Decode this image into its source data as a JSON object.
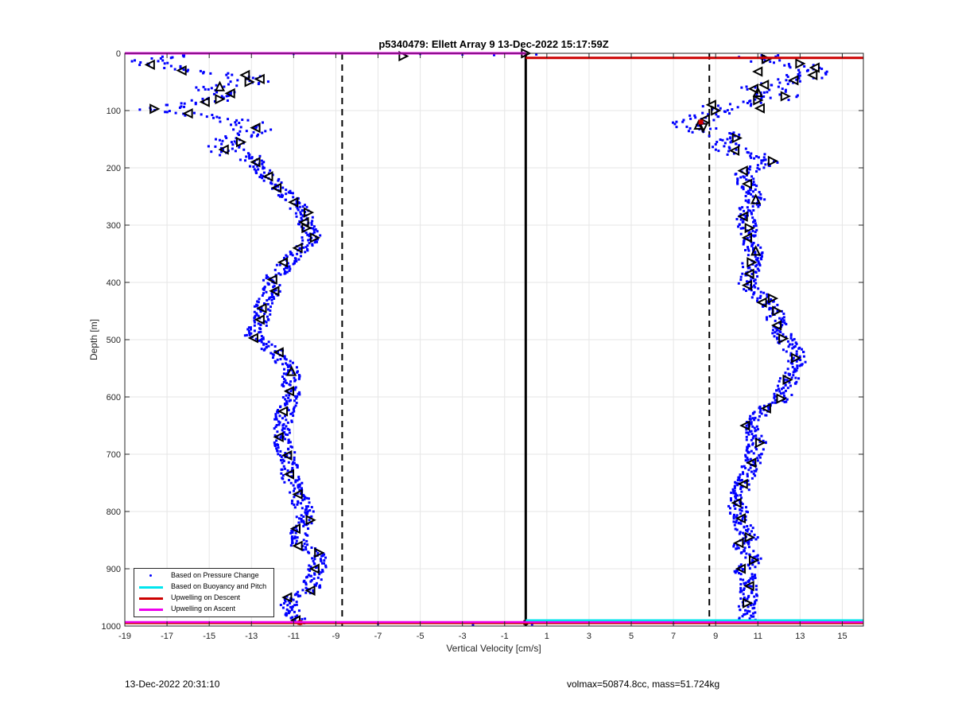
{
  "chart_data": {
    "type": "scatter",
    "title": "p5340479: Ellett Array 9 13-Dec-2022 15:17:59Z",
    "xlabel": "Vertical Velocity [cm/s]",
    "ylabel": "Depth [m]",
    "xlim": [
      -19,
      16
    ],
    "ylim": [
      0,
      1000
    ],
    "y_reversed": true,
    "grid": true,
    "x_ticks": [
      -19,
      -17,
      -15,
      -13,
      -11,
      -9,
      -7,
      -5,
      -3,
      -1,
      1,
      3,
      5,
      7,
      9,
      11,
      13,
      15
    ],
    "y_ticks": [
      0,
      100,
      200,
      300,
      400,
      500,
      600,
      700,
      800,
      900,
      1000
    ],
    "legend_position": "bottom-left",
    "legend": [
      {
        "name": "Based on Pressure Change",
        "color": "#0000ff",
        "kind": "dot"
      },
      {
        "name": "Based on Buoyancy and Pitch",
        "color": "#00e5ee",
        "kind": "line"
      },
      {
        "name": "Upwelling on Descent",
        "color": "#cc0000",
        "kind": "line"
      },
      {
        "name": "Upwelling on Ascent",
        "color": "#ee00ee",
        "kind": "line"
      }
    ],
    "dashed_lines_x": [
      -8.7,
      8.7
    ],
    "solid_line_x": 0,
    "descent_profile": [
      {
        "depth": 5,
        "v": -16.5
      },
      {
        "depth": 10,
        "v": -18.0
      },
      {
        "depth": 20,
        "v": -17.7
      },
      {
        "depth": 30,
        "v": -16.3
      },
      {
        "depth": 40,
        "v": -13.2
      },
      {
        "depth": 50,
        "v": -13.0
      },
      {
        "depth": 60,
        "v": -14.8
      },
      {
        "depth": 70,
        "v": -14.2
      },
      {
        "depth": 80,
        "v": -14.8
      },
      {
        "depth": 90,
        "v": -16.0
      },
      {
        "depth": 97,
        "v": -17.6
      },
      {
        "depth": 105,
        "v": -16.0
      },
      {
        "depth": 120,
        "v": -13.5
      },
      {
        "depth": 135,
        "v": -12.8
      },
      {
        "depth": 150,
        "v": -13.8
      },
      {
        "depth": 168,
        "v": -14.3
      },
      {
        "depth": 190,
        "v": -12.8
      },
      {
        "depth": 215,
        "v": -12.2
      },
      {
        "depth": 240,
        "v": -11.6
      },
      {
        "depth": 260,
        "v": -11.0
      },
      {
        "depth": 280,
        "v": -10.5
      },
      {
        "depth": 300,
        "v": -10.4
      },
      {
        "depth": 320,
        "v": -10.1
      },
      {
        "depth": 345,
        "v": -10.8
      },
      {
        "depth": 370,
        "v": -11.4
      },
      {
        "depth": 395,
        "v": -12.0
      },
      {
        "depth": 420,
        "v": -12.0
      },
      {
        "depth": 445,
        "v": -12.5
      },
      {
        "depth": 470,
        "v": -12.6
      },
      {
        "depth": 497,
        "v": -12.9
      },
      {
        "depth": 525,
        "v": -11.7
      },
      {
        "depth": 555,
        "v": -11.1
      },
      {
        "depth": 590,
        "v": -11.1
      },
      {
        "depth": 625,
        "v": -11.4
      },
      {
        "depth": 670,
        "v": -11.6
      },
      {
        "depth": 700,
        "v": -11.3
      },
      {
        "depth": 740,
        "v": -11.2
      },
      {
        "depth": 770,
        "v": -10.8
      },
      {
        "depth": 810,
        "v": -10.4
      },
      {
        "depth": 835,
        "v": -10.8
      },
      {
        "depth": 860,
        "v": -10.7
      },
      {
        "depth": 875,
        "v": -9.8
      },
      {
        "depth": 900,
        "v": -9.9
      },
      {
        "depth": 935,
        "v": -10.2
      },
      {
        "depth": 955,
        "v": -11.3
      },
      {
        "depth": 990,
        "v": -10.8
      }
    ],
    "ascent_profile": [
      {
        "depth": 5,
        "v": 11.0
      },
      {
        "depth": 15,
        "v": 11.3
      },
      {
        "depth": 20,
        "v": 13.0
      },
      {
        "depth": 30,
        "v": 13.5
      },
      {
        "depth": 40,
        "v": 13.3
      },
      {
        "depth": 50,
        "v": 12.5
      },
      {
        "depth": 60,
        "v": 11.0
      },
      {
        "depth": 75,
        "v": 12.2
      },
      {
        "depth": 85,
        "v": 11.2
      },
      {
        "depth": 95,
        "v": 9.0
      },
      {
        "depth": 105,
        "v": 9.0
      },
      {
        "depth": 115,
        "v": 8.3
      },
      {
        "depth": 125,
        "v": 7.5
      },
      {
        "depth": 135,
        "v": 8.5
      },
      {
        "depth": 150,
        "v": 10.0
      },
      {
        "depth": 170,
        "v": 9.8
      },
      {
        "depth": 190,
        "v": 11.7
      },
      {
        "depth": 210,
        "v": 10.3
      },
      {
        "depth": 230,
        "v": 10.5
      },
      {
        "depth": 255,
        "v": 10.9
      },
      {
        "depth": 280,
        "v": 10.3
      },
      {
        "depth": 300,
        "v": 10.5
      },
      {
        "depth": 320,
        "v": 10.6
      },
      {
        "depth": 345,
        "v": 10.8
      },
      {
        "depth": 365,
        "v": 10.7
      },
      {
        "depth": 385,
        "v": 10.6
      },
      {
        "depth": 405,
        "v": 10.5
      },
      {
        "depth": 430,
        "v": 11.3
      },
      {
        "depth": 450,
        "v": 11.8
      },
      {
        "depth": 475,
        "v": 11.9
      },
      {
        "depth": 500,
        "v": 12.3
      },
      {
        "depth": 530,
        "v": 12.9
      },
      {
        "depth": 560,
        "v": 12.6
      },
      {
        "depth": 585,
        "v": 12.3
      },
      {
        "depth": 605,
        "v": 12.1
      },
      {
        "depth": 620,
        "v": 11.3
      },
      {
        "depth": 650,
        "v": 10.5
      },
      {
        "depth": 680,
        "v": 11.0
      },
      {
        "depth": 715,
        "v": 10.7
      },
      {
        "depth": 750,
        "v": 10.3
      },
      {
        "depth": 780,
        "v": 10.0
      },
      {
        "depth": 810,
        "v": 10.1
      },
      {
        "depth": 845,
        "v": 10.6
      },
      {
        "depth": 860,
        "v": 10.2
      },
      {
        "depth": 885,
        "v": 10.8
      },
      {
        "depth": 900,
        "v": 10.3
      },
      {
        "depth": 930,
        "v": 10.6
      },
      {
        "depth": 960,
        "v": 10.5
      },
      {
        "depth": 985,
        "v": 10.5
      }
    ],
    "descent_triangles": [
      {
        "depth": 20,
        "v": -17.8,
        "dir": "left"
      },
      {
        "depth": 30,
        "v": -16.3,
        "dir": "left"
      },
      {
        "depth": 38,
        "v": -13.3,
        "dir": "left"
      },
      {
        "depth": 45,
        "v": -12.6,
        "dir": "left"
      },
      {
        "depth": 50,
        "v": -13.1,
        "dir": "right"
      },
      {
        "depth": 58,
        "v": -14.5,
        "dir": "up"
      },
      {
        "depth": 70,
        "v": -14.0,
        "dir": "left"
      },
      {
        "depth": 80,
        "v": -14.5,
        "dir": "right"
      },
      {
        "depth": 85,
        "v": -15.2,
        "dir": "left"
      },
      {
        "depth": 97,
        "v": -17.6,
        "dir": "right"
      },
      {
        "depth": 105,
        "v": -16.0,
        "dir": "left"
      },
      {
        "depth": 130,
        "v": -12.8,
        "dir": "left"
      },
      {
        "depth": 155,
        "v": -13.5,
        "dir": "right"
      },
      {
        "depth": 168,
        "v": -14.3,
        "dir": "left"
      },
      {
        "depth": 190,
        "v": -12.8,
        "dir": "left"
      },
      {
        "depth": 215,
        "v": -12.2,
        "dir": "left"
      },
      {
        "depth": 235,
        "v": -11.8,
        "dir": "left"
      },
      {
        "depth": 260,
        "v": -11.0,
        "dir": "left"
      },
      {
        "depth": 278,
        "v": -10.3,
        "dir": "right"
      },
      {
        "depth": 295,
        "v": -10.5,
        "dir": "left"
      },
      {
        "depth": 305,
        "v": -10.4,
        "dir": "right"
      },
      {
        "depth": 322,
        "v": -10.0,
        "dir": "right"
      },
      {
        "depth": 340,
        "v": -10.8,
        "dir": "left"
      },
      {
        "depth": 365,
        "v": -11.5,
        "dir": "left"
      },
      {
        "depth": 395,
        "v": -12.0,
        "dir": "left"
      },
      {
        "depth": 415,
        "v": -11.9,
        "dir": "left"
      },
      {
        "depth": 445,
        "v": -12.5,
        "dir": "left"
      },
      {
        "depth": 465,
        "v": -12.6,
        "dir": "left"
      },
      {
        "depth": 497,
        "v": -12.9,
        "dir": "left"
      },
      {
        "depth": 522,
        "v": -11.7,
        "dir": "left"
      },
      {
        "depth": 555,
        "v": -11.1,
        "dir": "up"
      },
      {
        "depth": 590,
        "v": -11.2,
        "dir": "left"
      },
      {
        "depth": 625,
        "v": -11.5,
        "dir": "left"
      },
      {
        "depth": 670,
        "v": -11.7,
        "dir": "left"
      },
      {
        "depth": 702,
        "v": -11.3,
        "dir": "left"
      },
      {
        "depth": 735,
        "v": -11.2,
        "dir": "left"
      },
      {
        "depth": 770,
        "v": -10.8,
        "dir": "left"
      },
      {
        "depth": 815,
        "v": -10.2,
        "dir": "right"
      },
      {
        "depth": 830,
        "v": -10.9,
        "dir": "left"
      },
      {
        "depth": 860,
        "v": -10.8,
        "dir": "left"
      },
      {
        "depth": 872,
        "v": -9.8,
        "dir": "right"
      },
      {
        "depth": 900,
        "v": -10.0,
        "dir": "left"
      },
      {
        "depth": 938,
        "v": -10.2,
        "dir": "left"
      },
      {
        "depth": 950,
        "v": -11.3,
        "dir": "left"
      },
      {
        "depth": 990,
        "v": -10.9,
        "dir": "left"
      }
    ],
    "ascent_triangles": [
      {
        "depth": 5,
        "v": -5.8,
        "dir": "right"
      },
      {
        "depth": 0,
        "v": 0.0,
        "dir": "right"
      },
      {
        "depth": 10,
        "v": 11.4,
        "dir": "right"
      },
      {
        "depth": 18,
        "v": 13.0,
        "dir": "right"
      },
      {
        "depth": 25,
        "v": 13.7,
        "dir": "left"
      },
      {
        "depth": 32,
        "v": 11.0,
        "dir": "left"
      },
      {
        "depth": 38,
        "v": 13.6,
        "dir": "left"
      },
      {
        "depth": 47,
        "v": 12.7,
        "dir": "left"
      },
      {
        "depth": 55,
        "v": 11.3,
        "dir": "left"
      },
      {
        "depth": 62,
        "v": 10.8,
        "dir": "left"
      },
      {
        "depth": 68,
        "v": 11.0,
        "dir": "up"
      },
      {
        "depth": 75,
        "v": 12.3,
        "dir": "right"
      },
      {
        "depth": 82,
        "v": 11.0,
        "dir": "right"
      },
      {
        "depth": 90,
        "v": 8.8,
        "dir": "left"
      },
      {
        "depth": 96,
        "v": 11.1,
        "dir": "left"
      },
      {
        "depth": 100,
        "v": 9.0,
        "dir": "right"
      },
      {
        "depth": 115,
        "v": 8.5,
        "dir": "left"
      },
      {
        "depth": 125,
        "v": 8.2,
        "dir": "up"
      },
      {
        "depth": 130,
        "v": 8.4,
        "dir": "down"
      },
      {
        "depth": 148,
        "v": 10.0,
        "dir": "right"
      },
      {
        "depth": 170,
        "v": 9.9,
        "dir": "left"
      },
      {
        "depth": 188,
        "v": 11.7,
        "dir": "right"
      },
      {
        "depth": 205,
        "v": 10.3,
        "dir": "left"
      },
      {
        "depth": 228,
        "v": 10.5,
        "dir": "left"
      },
      {
        "depth": 255,
        "v": 10.9,
        "dir": "up"
      },
      {
        "depth": 285,
        "v": 10.3,
        "dir": "left"
      },
      {
        "depth": 305,
        "v": 10.6,
        "dir": "right"
      },
      {
        "depth": 322,
        "v": 10.5,
        "dir": "left"
      },
      {
        "depth": 345,
        "v": 10.9,
        "dir": "up"
      },
      {
        "depth": 365,
        "v": 10.7,
        "dir": "right"
      },
      {
        "depth": 385,
        "v": 10.6,
        "dir": "left"
      },
      {
        "depth": 405,
        "v": 10.5,
        "dir": "left"
      },
      {
        "depth": 428,
        "v": 11.7,
        "dir": "right"
      },
      {
        "depth": 435,
        "v": 11.2,
        "dir": "left"
      },
      {
        "depth": 450,
        "v": 11.9,
        "dir": "right"
      },
      {
        "depth": 475,
        "v": 11.9,
        "dir": "left"
      },
      {
        "depth": 498,
        "v": 12.2,
        "dir": "right"
      },
      {
        "depth": 532,
        "v": 12.8,
        "dir": "right"
      },
      {
        "depth": 570,
        "v": 12.4,
        "dir": "right"
      },
      {
        "depth": 603,
        "v": 12.1,
        "dir": "right"
      },
      {
        "depth": 620,
        "v": 11.4,
        "dir": "left"
      },
      {
        "depth": 650,
        "v": 10.4,
        "dir": "left"
      },
      {
        "depth": 680,
        "v": 11.1,
        "dir": "right"
      },
      {
        "depth": 715,
        "v": 10.7,
        "dir": "left"
      },
      {
        "depth": 752,
        "v": 10.3,
        "dir": "left"
      },
      {
        "depth": 785,
        "v": 10.0,
        "dir": "left"
      },
      {
        "depth": 812,
        "v": 10.2,
        "dir": "left"
      },
      {
        "depth": 845,
        "v": 10.6,
        "dir": "right"
      },
      {
        "depth": 855,
        "v": 10.1,
        "dir": "left"
      },
      {
        "depth": 885,
        "v": 10.8,
        "dir": "right"
      },
      {
        "depth": 900,
        "v": 10.2,
        "dir": "left"
      },
      {
        "depth": 930,
        "v": 10.6,
        "dir": "left"
      },
      {
        "depth": 960,
        "v": 10.5,
        "dir": "right"
      }
    ],
    "ascent_line": {
      "x_range": [
        -19,
        0
      ],
      "depth": 0
    },
    "descent_line": {
      "x_range": [
        0,
        16
      ],
      "depth": 8
    },
    "bottom_lines": [
      {
        "name": "Upwelling on Descent",
        "x_range": [
          -19,
          16
        ],
        "depth": 995
      },
      {
        "name": "Upwelling on Ascent",
        "x_range": [
          -19,
          16
        ],
        "depth": 993
      },
      {
        "name": "Based on Buoyancy and Pitch",
        "x_range": [
          0,
          16
        ],
        "depth": 990
      }
    ]
  },
  "footer": {
    "left": "13-Dec-2022 20:31:10",
    "right": "volmax=50874.8cc, mass=51.724kg"
  },
  "colors": {
    "pressure": "#0000ff",
    "buoyancy": "#00e5ee",
    "descent": "#cc0000",
    "ascent": "#ee00ee",
    "grid": "#e6e6e6",
    "axis": "#262626"
  }
}
